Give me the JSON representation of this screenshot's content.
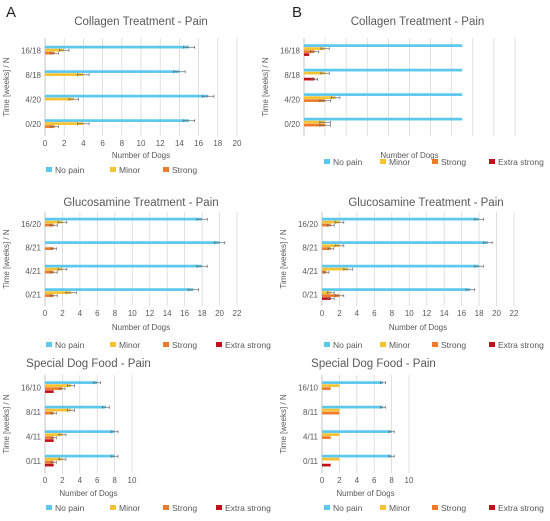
{
  "panels": [
    "A",
    "B"
  ],
  "colors": {
    "No pain": "#5BC8EE",
    "Minor": "#F5C230",
    "Strong": "#EE7B2A",
    "Extra strong": "#C0121B",
    "grid": "#D9D9D9",
    "error": "#666666",
    "text": "#595959",
    "title": "#595959"
  },
  "chart_data": [
    {
      "type": "bar",
      "orientation": "horizontal",
      "panel": "A",
      "title": "Collagen Treatment - Pain",
      "xlabel": "Number of Dogs",
      "ylabel": "Time [weeks]  / N",
      "categories": [
        "16/18",
        "8/18",
        "4/20",
        "0/20"
      ],
      "xlim": [
        0,
        20
      ],
      "xticks": [
        0,
        2,
        4,
        6,
        8,
        10,
        12,
        14,
        16,
        18,
        20
      ],
      "grid": true,
      "legend_position": "bottom",
      "legend": [
        "No pain",
        "Minor",
        "Strong"
      ],
      "series": [
        {
          "name": "No pain",
          "values": [
            15,
            14,
            17,
            15
          ],
          "errors": [
            0.6,
            0.6,
            0.6,
            0.6
          ]
        },
        {
          "name": "Minor",
          "values": [
            2,
            4,
            3,
            4
          ],
          "errors": [
            0.5,
            0.6,
            0.5,
            0.6
          ]
        },
        {
          "name": "Strong",
          "values": [
            1,
            0,
            0,
            1
          ],
          "errors": [
            0.4,
            0,
            0,
            0.4
          ]
        }
      ]
    },
    {
      "type": "bar",
      "orientation": "horizontal",
      "panel": "B",
      "title": "Collagen Treatment - Pain",
      "xlabel": "Number of Dogs",
      "ylabel": "Time [weeks]  / N",
      "categories": [
        "16/18",
        "8/18",
        "4/20",
        "0/20"
      ],
      "xlim": [
        0,
        20
      ],
      "xticks": [],
      "grid": true,
      "legend_position": "bottom",
      "legend": [
        "No pain",
        "Minor",
        "Strong",
        "Extra strong"
      ],
      "series": [
        {
          "name": "No pain",
          "values": [
            15,
            15,
            15,
            15
          ],
          "errors": [
            0,
            0,
            0,
            0
          ]
        },
        {
          "name": "Minor",
          "values": [
            2,
            2,
            3,
            2
          ],
          "errors": [
            0.4,
            0.4,
            0.4,
            0.5
          ]
        },
        {
          "name": "Strong",
          "values": [
            1,
            0,
            2,
            2
          ],
          "errors": [
            0.4,
            0,
            0.5,
            0.5
          ]
        },
        {
          "name": "Extra strong",
          "values": [
            0.5,
            1,
            0,
            0
          ],
          "errors": [
            0,
            0.3,
            0,
            0
          ]
        }
      ]
    },
    {
      "type": "bar",
      "orientation": "horizontal",
      "panel": "A",
      "title": "Glucosamine Treatment - Pain",
      "xlabel": "Number of Dogs",
      "ylabel": "Time [weeks]  / N",
      "categories": [
        "16/20",
        "8/21",
        "4/21",
        "0/21"
      ],
      "xlim": [
        0,
        22
      ],
      "xticks": [
        0,
        2,
        4,
        6,
        8,
        10,
        12,
        14,
        16,
        18,
        20,
        22
      ],
      "grid": true,
      "legend_position": "bottom",
      "legend": [
        "No pain",
        "Minor",
        "Strong",
        "Extra strong"
      ],
      "series": [
        {
          "name": "No pain",
          "values": [
            18,
            20,
            18,
            17
          ],
          "errors": [
            0.6,
            0.6,
            0.6,
            0.6
          ]
        },
        {
          "name": "Minor",
          "values": [
            2,
            0,
            2,
            3
          ],
          "errors": [
            0.5,
            0,
            0.5,
            0.6
          ]
        },
        {
          "name": "Strong",
          "values": [
            1,
            1,
            1,
            1
          ],
          "errors": [
            0.4,
            0.3,
            0.4,
            0.4
          ]
        },
        {
          "name": "Extra strong",
          "values": [
            0,
            0,
            0,
            0
          ],
          "errors": [
            0,
            0,
            0,
            0
          ]
        }
      ]
    },
    {
      "type": "bar",
      "orientation": "horizontal",
      "panel": "B",
      "title": "Glucosamine Treatment - Pain",
      "xlabel": "Number of Dogs",
      "ylabel": "Time [weeks]  / N",
      "categories": [
        "16/20",
        "8/21",
        "4/21",
        "0/21"
      ],
      "xlim": [
        0,
        22
      ],
      "xticks": [
        0,
        2,
        4,
        6,
        8,
        10,
        12,
        14,
        16,
        18,
        20,
        22
      ],
      "grid": true,
      "legend_position": "bottom",
      "legend": [
        "No pain",
        "Minor",
        "Strong",
        "Extra strong"
      ],
      "series": [
        {
          "name": "No pain",
          "values": [
            18,
            19,
            18,
            17
          ],
          "errors": [
            0.5,
            0.5,
            0.5,
            0.5
          ]
        },
        {
          "name": "Minor",
          "values": [
            2,
            2,
            3,
            1
          ],
          "errors": [
            0.5,
            0.5,
            0.5,
            0.4
          ]
        },
        {
          "name": "Strong",
          "values": [
            1,
            1,
            0.5,
            2
          ],
          "errors": [
            0.4,
            0.3,
            0.3,
            0.5
          ]
        },
        {
          "name": "Extra strong",
          "values": [
            0,
            0,
            0,
            1
          ],
          "errors": [
            0,
            0,
            0,
            0.4
          ]
        }
      ]
    },
    {
      "type": "bar",
      "orientation": "horizontal",
      "panel": "A",
      "title": "Special Dog Food - Pain",
      "xlabel": "Number of Dogs",
      "ylabel": "Time [weeks]  / N",
      "categories": [
        "16/10",
        "8/11",
        "4/11",
        "0/11"
      ],
      "xlim": [
        0,
        10
      ],
      "xticks": [
        0,
        2,
        4,
        6,
        8,
        10
      ],
      "grid": true,
      "legend_position": "bottom",
      "legend": [
        "No pain",
        "Minor",
        "Strong",
        "Extra strong"
      ],
      "series": [
        {
          "name": "No pain",
          "values": [
            6,
            7,
            8,
            8
          ],
          "errors": [
            0.4,
            0.4,
            0.4,
            0.4
          ]
        },
        {
          "name": "Minor",
          "values": [
            3,
            3,
            2,
            2
          ],
          "errors": [
            0.4,
            0.4,
            0.4,
            0.4
          ]
        },
        {
          "name": "Strong",
          "values": [
            2,
            1,
            1,
            1
          ],
          "errors": [
            0.3,
            0.3,
            0.3,
            0.3
          ]
        },
        {
          "name": "Extra strong",
          "values": [
            1,
            0,
            1,
            1
          ],
          "errors": [
            0,
            0,
            0,
            0
          ]
        }
      ]
    },
    {
      "type": "bar",
      "orientation": "horizontal",
      "panel": "B",
      "title": "Special Dog Food - Pain",
      "xlabel": "Number of Dogs",
      "ylabel": "Time [weeks]  / N",
      "categories": [
        "16/10",
        "8/11",
        "4/11",
        "0/11"
      ],
      "xlim": [
        0,
        10
      ],
      "xticks": [
        0,
        2,
        4,
        6,
        8,
        10
      ],
      "grid": true,
      "legend_position": "bottom",
      "legend": [
        "No pain",
        "Minor",
        "Strong",
        "Extra strong"
      ],
      "series": [
        {
          "name": "No pain",
          "values": [
            7,
            7,
            8,
            8
          ],
          "errors": [
            0.3,
            0.3,
            0.3,
            0.3
          ]
        },
        {
          "name": "Minor",
          "values": [
            2,
            2,
            2,
            2
          ],
          "errors": [
            0,
            0,
            0,
            0
          ]
        },
        {
          "name": "Strong",
          "values": [
            1,
            2,
            1,
            0
          ],
          "errors": [
            0,
            0,
            0,
            0
          ]
        },
        {
          "name": "Extra strong",
          "values": [
            0,
            0,
            0,
            1
          ],
          "errors": [
            0,
            0,
            0,
            0
          ]
        }
      ]
    }
  ]
}
